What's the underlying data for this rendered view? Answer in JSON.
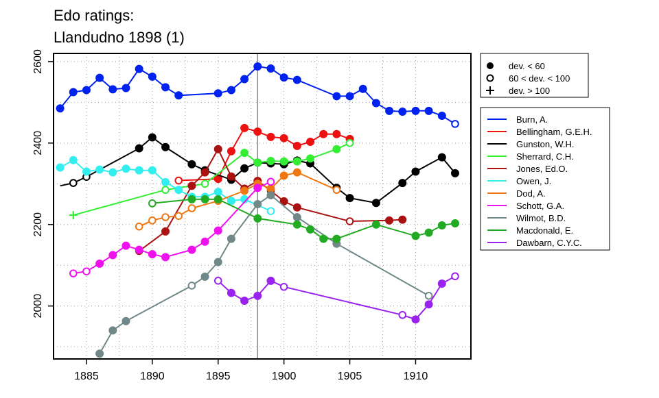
{
  "chart_data": {
    "type": "line",
    "title": "Edo ratings:",
    "subtitle": "Llandudno 1898 (1)",
    "xlabel": "",
    "ylabel": "",
    "xlim": [
      1882.5,
      1914.2
    ],
    "ylim": [
      1870,
      2620
    ],
    "xticks": [
      1885,
      1890,
      1895,
      1900,
      1905,
      1910
    ],
    "yticks": [
      2000,
      2200,
      2400,
      2600
    ],
    "grid": true,
    "reference_line_x": 1898,
    "marker_legend": [
      {
        "marker": "filled",
        "label": "dev. < 60"
      },
      {
        "marker": "open",
        "label": "60 < dev. < 100"
      },
      {
        "marker": "plus",
        "label": "dev. > 100"
      }
    ],
    "legend_position": "right",
    "series": [
      {
        "name": "Burn, A.",
        "color": "#0022ee",
        "points": [
          [
            1883,
            2485,
            "f"
          ],
          [
            1884,
            2525,
            "f"
          ],
          [
            1885,
            2530,
            "f"
          ],
          [
            1886,
            2560,
            "f"
          ],
          [
            1887,
            2532,
            "f"
          ],
          [
            1888,
            2535,
            "f"
          ],
          [
            1889,
            2582,
            "f"
          ],
          [
            1890,
            2563,
            "f"
          ],
          [
            1891,
            2537,
            "f"
          ],
          [
            1892,
            2517,
            "f"
          ],
          [
            1895,
            2522,
            "f"
          ],
          [
            1896,
            2530,
            "f"
          ],
          [
            1897,
            2557,
            "f"
          ],
          [
            1898,
            2588,
            "f"
          ],
          [
            1899,
            2583,
            "f"
          ],
          [
            1900,
            2561,
            "f"
          ],
          [
            1901,
            2555,
            "f"
          ],
          [
            1904,
            2515,
            "f"
          ],
          [
            1905,
            2515,
            "f"
          ],
          [
            1906,
            2533,
            "f"
          ],
          [
            1907,
            2498,
            "f"
          ],
          [
            1908,
            2479,
            "f"
          ],
          [
            1909,
            2477,
            "f"
          ],
          [
            1910,
            2479,
            "f"
          ],
          [
            1911,
            2479,
            "f"
          ],
          [
            1912,
            2467,
            "f"
          ],
          [
            1913,
            2447,
            "o"
          ]
        ]
      },
      {
        "name": "Bellingham, G.E.H.",
        "color": "#ee1111",
        "points": [
          [
            1892,
            2308,
            "o"
          ],
          [
            1895,
            2312,
            "f"
          ],
          [
            1896,
            2380,
            "f"
          ],
          [
            1897,
            2437,
            "f"
          ],
          [
            1898,
            2428,
            "f"
          ],
          [
            1899,
            2415,
            "f"
          ],
          [
            1900,
            2412,
            "f"
          ],
          [
            1901,
            2393,
            "f"
          ],
          [
            1902,
            2403,
            "f"
          ],
          [
            1903,
            2422,
            "f"
          ],
          [
            1904,
            2422,
            "f"
          ],
          [
            1905,
            2410,
            "f"
          ]
        ]
      },
      {
        "name": "Gunston, W.H.",
        "color": "#000000",
        "points": [
          [
            1883,
            2295,
            "n"
          ],
          [
            1884,
            2302,
            "o"
          ],
          [
            1885,
            2317,
            "o"
          ],
          [
            1889,
            2387,
            "f"
          ],
          [
            1890,
            2414,
            "f"
          ],
          [
            1891,
            2390,
            "f"
          ],
          [
            1893,
            2348,
            "f"
          ],
          [
            1894,
            2333,
            "f"
          ],
          [
            1896,
            2310,
            "f"
          ],
          [
            1897,
            2338,
            "f"
          ],
          [
            1898,
            2352,
            "f"
          ],
          [
            1899,
            2350,
            "f"
          ],
          [
            1900,
            2348,
            "f"
          ],
          [
            1901,
            2357,
            "f"
          ],
          [
            1902,
            2350,
            "f"
          ],
          [
            1904,
            2290,
            "f"
          ],
          [
            1905,
            2265,
            "f"
          ],
          [
            1907,
            2253,
            "f"
          ],
          [
            1909,
            2302,
            "f"
          ],
          [
            1910,
            2330,
            "f"
          ],
          [
            1912,
            2365,
            "f"
          ],
          [
            1913,
            2326,
            "f"
          ]
        ]
      },
      {
        "name": "Sherrard, C.H.",
        "color": "#33ee33",
        "points": [
          [
            1884,
            2223,
            "p"
          ],
          [
            1891,
            2285,
            "o"
          ],
          [
            1894,
            2300,
            "o"
          ],
          [
            1897,
            2376,
            "f"
          ],
          [
            1898,
            2352,
            "f"
          ],
          [
            1899,
            2356,
            "f"
          ],
          [
            1900,
            2355,
            "f"
          ],
          [
            1901,
            2355,
            "f"
          ],
          [
            1902,
            2362,
            "f"
          ],
          [
            1904,
            2385,
            "f"
          ],
          [
            1905,
            2400,
            "o"
          ]
        ]
      },
      {
        "name": "Jones, Ed.O.",
        "color": "#aa1111",
        "points": [
          [
            1889,
            2135,
            "o"
          ],
          [
            1891,
            2183,
            "f"
          ],
          [
            1893,
            2295,
            "f"
          ],
          [
            1894,
            2328,
            "f"
          ],
          [
            1895,
            2385,
            "f"
          ],
          [
            1896,
            2318,
            "f"
          ],
          [
            1897,
            2288,
            "f"
          ],
          [
            1898,
            2307,
            "f"
          ],
          [
            1899,
            2283,
            "o"
          ],
          [
            1900,
            2257,
            "f"
          ],
          [
            1901,
            2242,
            "f"
          ],
          [
            1905,
            2208,
            "o"
          ],
          [
            1908,
            2210,
            "f"
          ],
          [
            1909,
            2212,
            "f"
          ]
        ]
      },
      {
        "name": "Owen, J.",
        "color": "#33eeee",
        "points": [
          [
            1883,
            2340,
            "f"
          ],
          [
            1884,
            2358,
            "f"
          ],
          [
            1885,
            2330,
            "f"
          ],
          [
            1886,
            2335,
            "f"
          ],
          [
            1887,
            2328,
            "f"
          ],
          [
            1888,
            2337,
            "f"
          ],
          [
            1889,
            2333,
            "f"
          ],
          [
            1890,
            2333,
            "f"
          ],
          [
            1891,
            2304,
            "f"
          ],
          [
            1892,
            2285,
            "f"
          ],
          [
            1893,
            2268,
            "f"
          ],
          [
            1894,
            2268,
            "f"
          ],
          [
            1895,
            2280,
            "f"
          ],
          [
            1896,
            2258,
            "f"
          ],
          [
            1897,
            2262,
            "f"
          ],
          [
            1899,
            2233,
            "o"
          ]
        ]
      },
      {
        "name": "Dod, A.",
        "color": "#ee7711",
        "points": [
          [
            1889,
            2195,
            "o"
          ],
          [
            1890,
            2210,
            "o"
          ],
          [
            1891,
            2218,
            "o"
          ],
          [
            1892,
            2221,
            "o"
          ],
          [
            1893,
            2240,
            "o"
          ],
          [
            1895,
            2258,
            "o"
          ],
          [
            1897,
            2283,
            "f"
          ],
          [
            1898,
            2300,
            "f"
          ],
          [
            1899,
            2288,
            "f"
          ],
          [
            1900,
            2320,
            "f"
          ],
          [
            1901,
            2328,
            "f"
          ],
          [
            1904,
            2285,
            "o"
          ]
        ]
      },
      {
        "name": "Schott, G.A.",
        "color": "#ee11ee",
        "points": [
          [
            1884,
            2080,
            "o"
          ],
          [
            1885,
            2085,
            "o"
          ],
          [
            1886,
            2104,
            "f"
          ],
          [
            1887,
            2125,
            "f"
          ],
          [
            1888,
            2148,
            "f"
          ],
          [
            1889,
            2138,
            "f"
          ],
          [
            1890,
            2127,
            "f"
          ],
          [
            1891,
            2120,
            "f"
          ],
          [
            1893,
            2138,
            "f"
          ],
          [
            1894,
            2158,
            "f"
          ],
          [
            1895,
            2185,
            "f"
          ],
          [
            1898,
            2290,
            "f"
          ],
          [
            1899,
            2305,
            "o"
          ]
        ]
      },
      {
        "name": "Wilmot, B.D.",
        "color": "#708888",
        "points": [
          [
            1886,
            1883,
            "f"
          ],
          [
            1887,
            1940,
            "f"
          ],
          [
            1888,
            1963,
            "f"
          ],
          [
            1893,
            2050,
            "o"
          ],
          [
            1894,
            2072,
            "f"
          ],
          [
            1895,
            2108,
            "f"
          ],
          [
            1896,
            2165,
            "f"
          ],
          [
            1898,
            2250,
            "f"
          ],
          [
            1899,
            2272,
            "f"
          ],
          [
            1901,
            2218,
            "f"
          ],
          [
            1904,
            2153,
            "f"
          ],
          [
            1911,
            2025,
            "o"
          ]
        ]
      },
      {
        "name": "Macdonald, E.",
        "color": "#22aa22",
        "points": [
          [
            1890,
            2252,
            "o"
          ],
          [
            1893,
            2262,
            "f"
          ],
          [
            1894,
            2262,
            "f"
          ],
          [
            1895,
            2262,
            "f"
          ],
          [
            1898,
            2215,
            "f"
          ],
          [
            1901,
            2200,
            "f"
          ],
          [
            1902,
            2188,
            "f"
          ],
          [
            1903,
            2165,
            "f"
          ],
          [
            1904,
            2165,
            "f"
          ],
          [
            1907,
            2200,
            "f"
          ],
          [
            1910,
            2172,
            "f"
          ],
          [
            1911,
            2180,
            "f"
          ],
          [
            1912,
            2198,
            "f"
          ],
          [
            1913,
            2203,
            "f"
          ]
        ]
      },
      {
        "name": "Dawbarn, C.Y.C.",
        "color": "#9922ee",
        "points": [
          [
            1895,
            2062,
            "o"
          ],
          [
            1896,
            2032,
            "f"
          ],
          [
            1897,
            2013,
            "f"
          ],
          [
            1898,
            2025,
            "f"
          ],
          [
            1899,
            2062,
            "f"
          ],
          [
            1900,
            2047,
            "o"
          ],
          [
            1909,
            1978,
            "o"
          ],
          [
            1910,
            1967,
            "f"
          ],
          [
            1911,
            2004,
            "f"
          ],
          [
            1912,
            2055,
            "f"
          ],
          [
            1913,
            2073,
            "o"
          ]
        ]
      }
    ]
  }
}
